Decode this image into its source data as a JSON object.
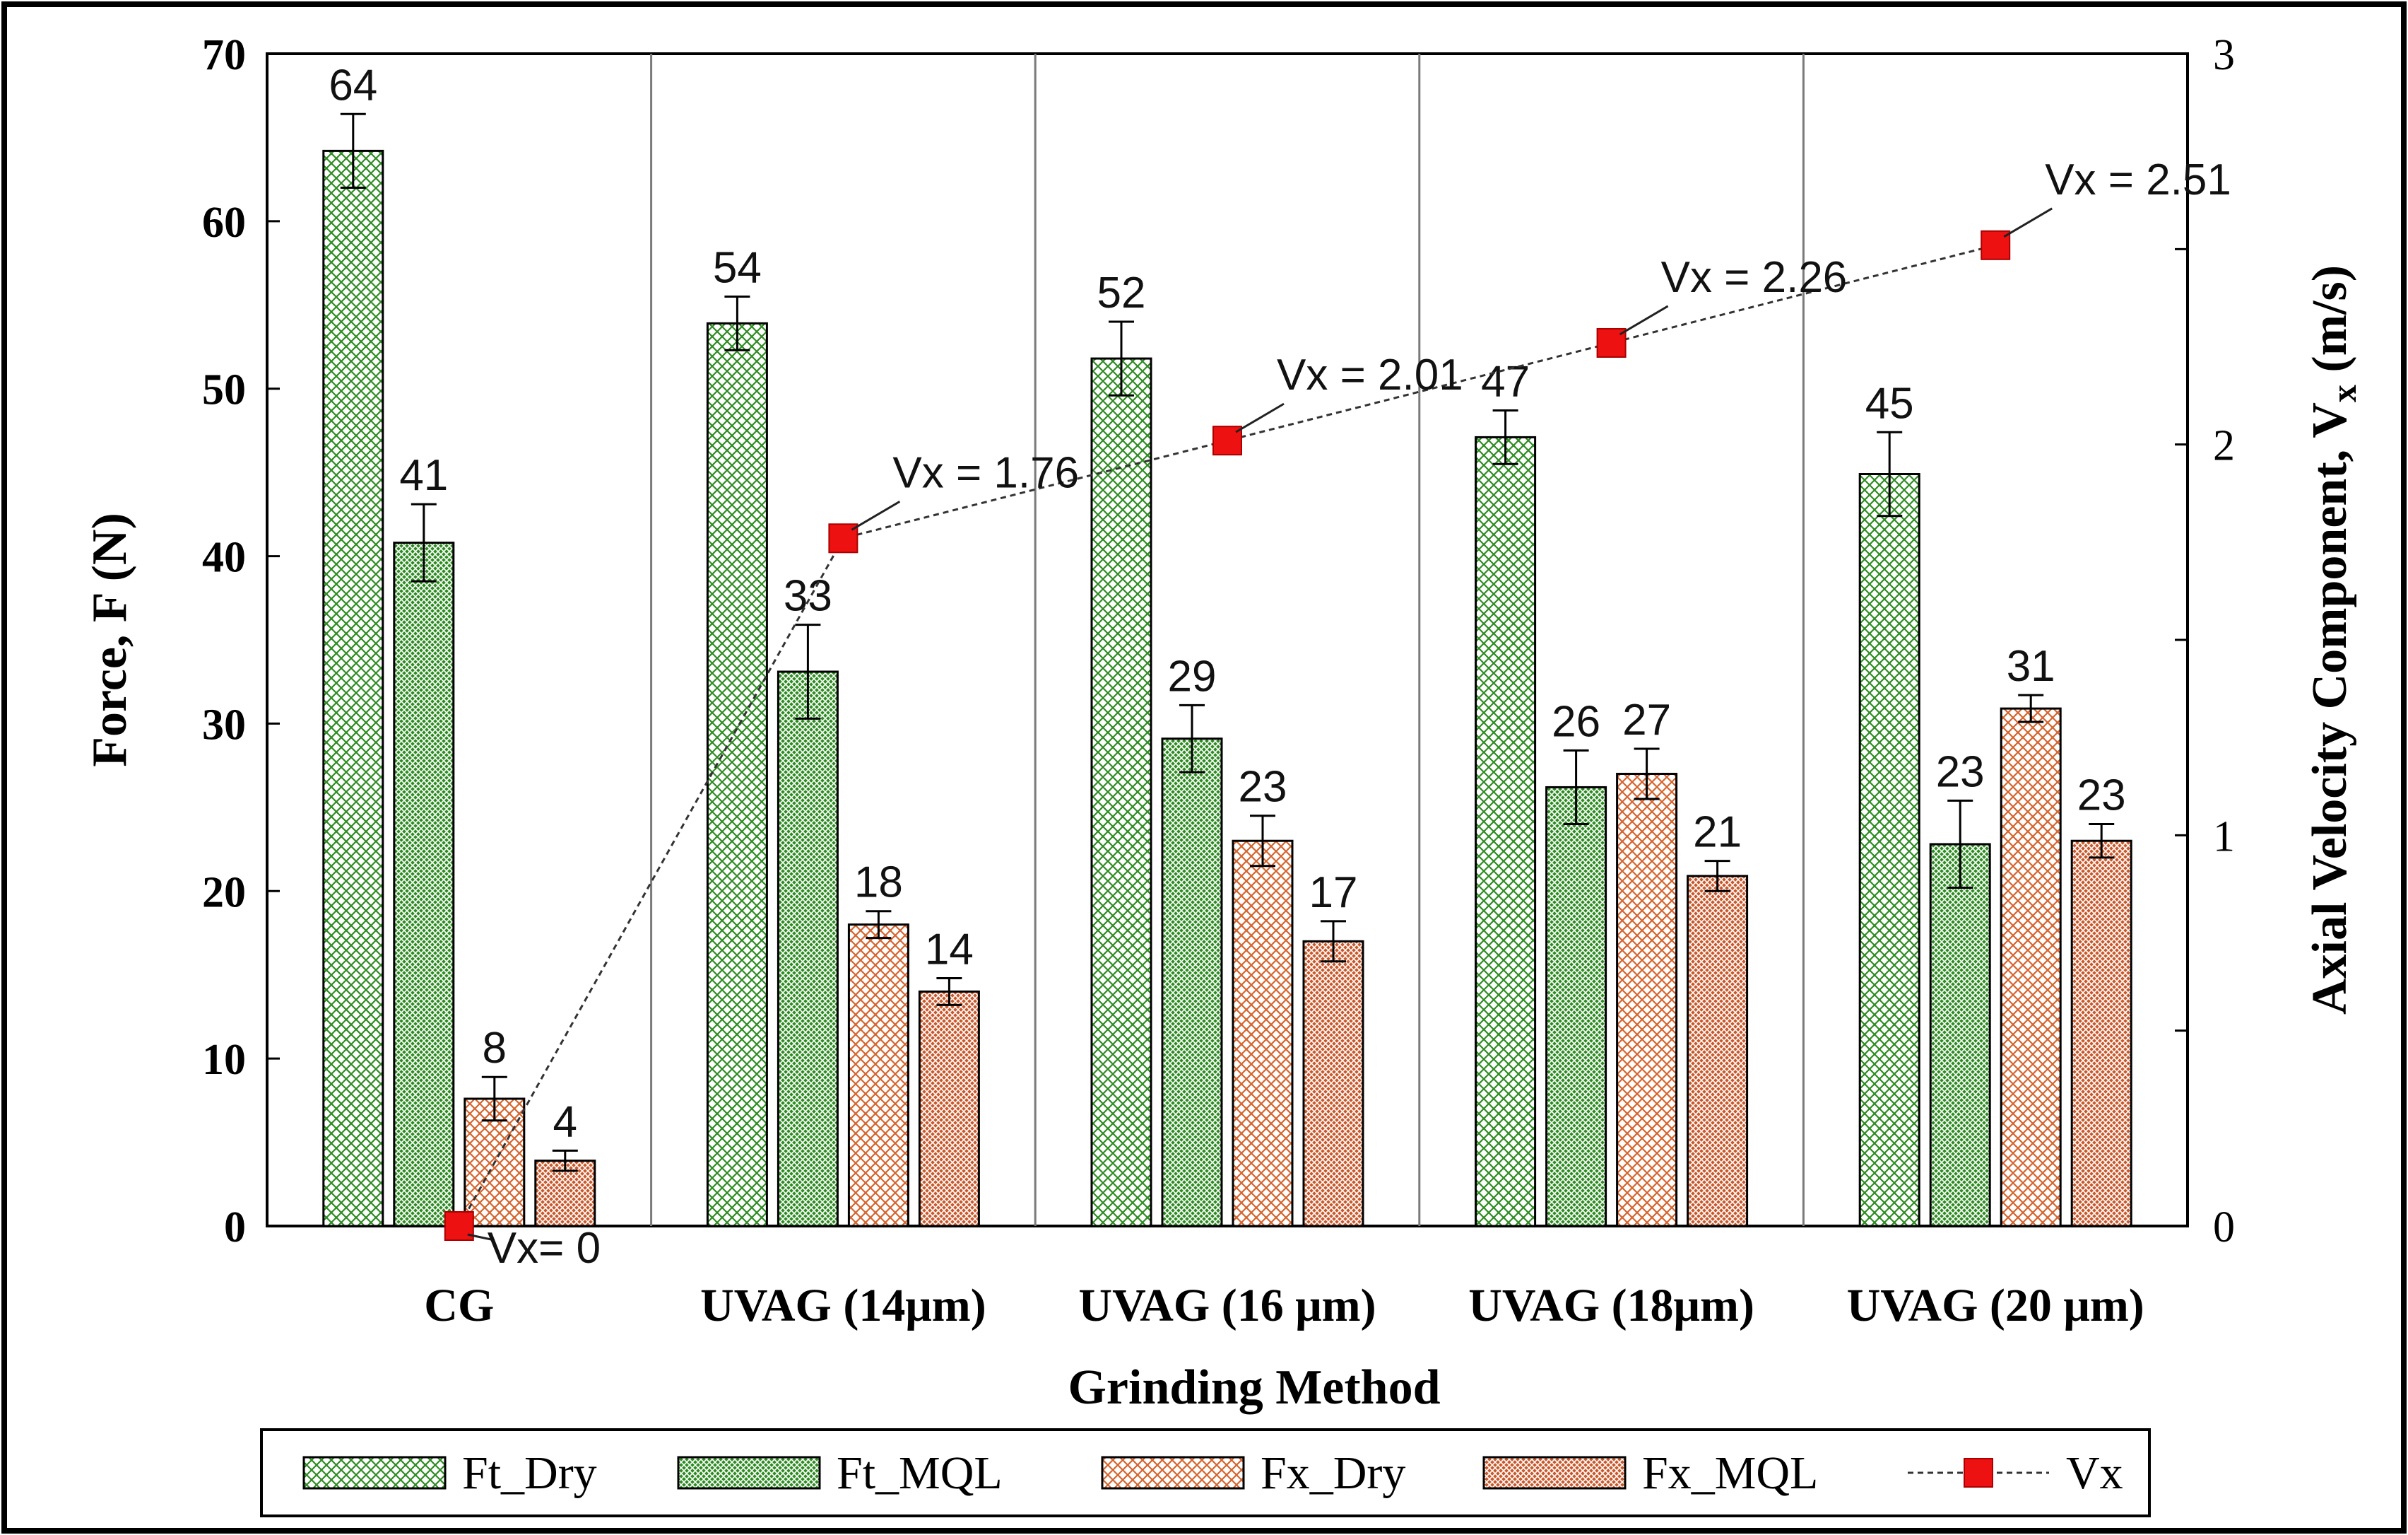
{
  "chart_data": {
    "type": "bar",
    "xlabel": "Grinding Method",
    "ylabel": "Force, F (N)",
    "y2label": "Axial Velocity Component, V",
    "y2label_sub": "x",
    "y2label_unit": " (m/s)",
    "categories": [
      "CG",
      "UVAG (14μm)",
      "UVAG (16 μm)",
      "UVAG (18μm)",
      "UVAG (20 μm)"
    ],
    "ylim": [
      0,
      70
    ],
    "yticks": [
      "0",
      "10",
      "20",
      "30",
      "40",
      "50",
      "60",
      "70"
    ],
    "y2lim": [
      0,
      3
    ],
    "y2ticks": [
      "0",
      "1",
      "2",
      "3"
    ],
    "series": [
      {
        "name": "Ft_Dry",
        "pattern": "green-dry",
        "values": [
          64.2,
          53.9,
          51.8,
          47.1,
          44.9
        ],
        "errors": [
          2.2,
          1.6,
          2.2,
          1.6,
          2.5
        ],
        "labels": [
          "64",
          "54",
          "52",
          "47",
          "45"
        ]
      },
      {
        "name": "Ft_MQL",
        "pattern": "green-mql",
        "values": [
          40.8,
          33.1,
          29.1,
          26.2,
          22.8
        ],
        "errors": [
          2.3,
          2.8,
          2.0,
          2.2,
          2.6
        ],
        "labels": [
          "41",
          "33",
          "29",
          "26",
          "23"
        ]
      },
      {
        "name": "Fx_Dry",
        "pattern": "orange-dry",
        "values": [
          7.6,
          18.0,
          23.0,
          27.0,
          30.9
        ],
        "errors": [
          1.3,
          0.8,
          1.5,
          1.5,
          0.8
        ],
        "labels": [
          "8",
          "18",
          "23",
          "27",
          "31"
        ]
      },
      {
        "name": "Fx_MQL",
        "pattern": "orange-mql",
        "values": [
          3.9,
          14.0,
          17.0,
          20.9,
          23.0
        ],
        "errors": [
          0.6,
          0.8,
          1.2,
          0.9,
          1.0
        ],
        "labels": [
          "4",
          "14",
          "17",
          "21",
          "23"
        ]
      }
    ],
    "line_series": {
      "name": "Vx",
      "values": [
        0,
        1.76,
        2.01,
        2.26,
        2.51
      ],
      "labels": [
        "Vx= 0",
        "Vx = 1.76",
        "Vx = 2.01",
        "Vx =  2.26",
        "Vx = 2.51"
      ]
    },
    "legend_position": "bottom",
    "grid": "vertical separators between categories"
  },
  "colors": {
    "green": "#2e8b22",
    "green_dark": "#1f6e16",
    "orange": "#d5642e",
    "orange_dark": "#b8501e",
    "marker": "#ee1111"
  }
}
